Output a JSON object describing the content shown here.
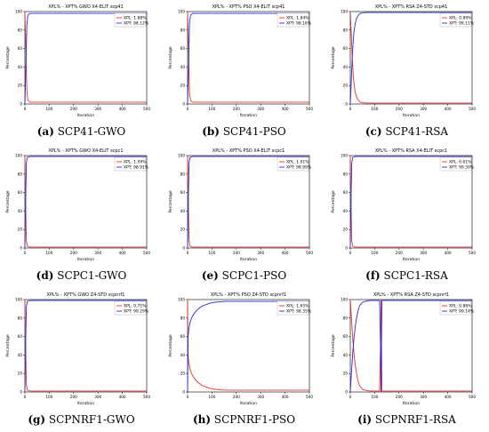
{
  "colors": {
    "xpl": "#e53030",
    "xpt": "#2a2ad8",
    "axis": "#000000",
    "legend_border": "#888888"
  },
  "chart_data": [
    {
      "type": "line",
      "title": "XPL% - XPT% GWO X4-ELIT scp41",
      "xlabel": "Iteration",
      "ylabel": "Percentage",
      "xlim": [
        0,
        500
      ],
      "ylim": [
        0,
        100
      ],
      "xticks": [
        "0",
        "100",
        "200",
        "300",
        "400",
        "500"
      ],
      "yticks": [
        "0",
        "20",
        "40",
        "60",
        "80",
        "100"
      ],
      "legend_position": "top-right",
      "caption_letter": "(a)",
      "caption_text": "SCP41-GWO",
      "series": [
        {
          "name": "XPL",
          "label": "XPL: 1.88%",
          "x": [
            0,
            4,
            8,
            12,
            20,
            50,
            500
          ],
          "y": [
            100,
            60,
            15,
            4,
            2,
            2,
            2
          ]
        },
        {
          "name": "XPT",
          "label": "XPT: 98.12%",
          "x": [
            0,
            4,
            8,
            12,
            20,
            50,
            500
          ],
          "y": [
            0,
            40,
            85,
            96,
            98,
            98,
            98
          ]
        }
      ]
    },
    {
      "type": "line",
      "title": "XPL% - XPT% PSO X4-ELIT scp41",
      "xlabel": "Iteration",
      "ylabel": "Percentage",
      "xlim": [
        0,
        500
      ],
      "ylim": [
        0,
        100
      ],
      "xticks": [
        "0",
        "100",
        "200",
        "300",
        "400",
        "500"
      ],
      "yticks": [
        "0",
        "20",
        "40",
        "60",
        "80",
        "100"
      ],
      "legend_position": "top-right",
      "caption_letter": "(b)",
      "caption_text": "SCP41-PSO",
      "series": [
        {
          "name": "XPL",
          "label": "XPL: 1.84%",
          "x": [
            0,
            4,
            8,
            12,
            20,
            50,
            500
          ],
          "y": [
            100,
            60,
            12,
            4,
            2,
            2,
            2
          ]
        },
        {
          "name": "XPT",
          "label": "XPT: 98.16%",
          "x": [
            0,
            4,
            8,
            12,
            20,
            50,
            500
          ],
          "y": [
            0,
            40,
            88,
            96,
            98,
            98,
            98
          ]
        }
      ]
    },
    {
      "type": "line",
      "title": "XPL% - XPT% RSA Z4-STD scp41",
      "xlabel": "Iteration",
      "ylabel": "Percentage",
      "xlim": [
        0,
        500
      ],
      "ylim": [
        0,
        100
      ],
      "xticks": [
        "0",
        "100",
        "200",
        "300",
        "400",
        "500"
      ],
      "yticks": [
        "0",
        "20",
        "40",
        "60",
        "80",
        "100"
      ],
      "legend_position": "top-right",
      "caption_letter": "(c)",
      "caption_text": "SCP41-RSA",
      "series": [
        {
          "name": "XPL",
          "label": "XPL: 0.89%",
          "x": [
            0,
            3,
            6,
            9,
            12,
            15,
            20,
            25,
            30,
            40,
            60,
            120,
            200,
            500
          ],
          "y": [
            100,
            82,
            62,
            45,
            32,
            22,
            13,
            8,
            5,
            2,
            1,
            1,
            1,
            1
          ]
        },
        {
          "name": "XPT",
          "label": "XPT: 99.11%",
          "x": [
            0,
            3,
            6,
            9,
            12,
            15,
            20,
            25,
            30,
            40,
            60,
            120,
            200,
            500
          ],
          "y": [
            0,
            18,
            38,
            55,
            68,
            78,
            87,
            92,
            95,
            98,
            99,
            99,
            99,
            99
          ]
        }
      ]
    },
    {
      "type": "line",
      "title": "XPL% - XPT% GWO X4-ELIT scpc1",
      "xlabel": "Iteration",
      "ylabel": "Percentage",
      "xlim": [
        0,
        500
      ],
      "ylim": [
        0,
        100
      ],
      "xticks": [
        "0",
        "100",
        "200",
        "300",
        "400",
        "500"
      ],
      "yticks": [
        "0",
        "20",
        "40",
        "60",
        "80",
        "100"
      ],
      "legend_position": "top-right",
      "caption_letter": "(d)",
      "caption_text": "SCPC1-GWO",
      "series": [
        {
          "name": "XPL",
          "label": "XPL: 1.09%",
          "x": [
            0,
            3,
            6,
            10,
            20,
            500
          ],
          "y": [
            100,
            50,
            8,
            2,
            1,
            1
          ]
        },
        {
          "name": "XPT",
          "label": "XPT: 98.91%",
          "x": [
            0,
            3,
            6,
            10,
            20,
            500
          ],
          "y": [
            0,
            50,
            92,
            98,
            99,
            99
          ]
        }
      ]
    },
    {
      "type": "line",
      "title": "XPL% - XPT% PSO X4-ELIT scpc1",
      "xlabel": "Iteration",
      "ylabel": "Percentage",
      "xlim": [
        0,
        500
      ],
      "ylim": [
        0,
        100
      ],
      "xticks": [
        "0",
        "100",
        "200",
        "300",
        "400",
        "500"
      ],
      "yticks": [
        "0",
        "20",
        "40",
        "60",
        "80",
        "100"
      ],
      "legend_position": "top-right",
      "caption_letter": "(e)",
      "caption_text": "SCPC1-PSO",
      "series": [
        {
          "name": "XPL",
          "label": "XPL: 1.01%",
          "x": [
            0,
            3,
            6,
            10,
            20,
            500
          ],
          "y": [
            100,
            50,
            8,
            2,
            1,
            1
          ]
        },
        {
          "name": "XPT",
          "label": "XPT: 98.99%",
          "x": [
            0,
            3,
            6,
            10,
            20,
            500
          ],
          "y": [
            0,
            50,
            92,
            98,
            99,
            99
          ]
        }
      ]
    },
    {
      "type": "line",
      "title": "XPL% - XPT% RSA X4-ELIT scpc1",
      "xlabel": "Iteration",
      "ylabel": "Percentage",
      "xlim": [
        0,
        500
      ],
      "ylim": [
        0,
        100
      ],
      "xticks": [
        "0",
        "100",
        "200",
        "300",
        "400",
        "500"
      ],
      "yticks": [
        "0",
        "20",
        "40",
        "60",
        "80",
        "100"
      ],
      "legend_position": "top-right",
      "caption_letter": "(f)",
      "caption_text": "SCPC1-RSA",
      "series": [
        {
          "name": "XPL",
          "label": "XPL: 0.61%",
          "x": [
            0,
            3,
            6,
            10,
            20,
            500
          ],
          "y": [
            100,
            50,
            8,
            2,
            1,
            1
          ]
        },
        {
          "name": "XPT",
          "label": "XPT: 99.39%",
          "x": [
            0,
            3,
            6,
            10,
            20,
            500
          ],
          "y": [
            0,
            50,
            92,
            98,
            99,
            99
          ]
        }
      ]
    },
    {
      "type": "line",
      "title": "XPL% - XPT% GWO Z4-STD scpnrf1",
      "xlabel": "Iteration",
      "ylabel": "Percentage",
      "xlim": [
        0,
        500
      ],
      "ylim": [
        0,
        100
      ],
      "xticks": [
        "0",
        "100",
        "200",
        "300",
        "400",
        "500"
      ],
      "yticks": [
        "0",
        "20",
        "40",
        "60",
        "80",
        "100"
      ],
      "legend_position": "top-right",
      "caption_letter": "(g)",
      "caption_text": "SCPNRF1-GWO",
      "series": [
        {
          "name": "XPL",
          "label": "XPL: 0.71%",
          "x": [
            0,
            3,
            6,
            10,
            20,
            500
          ],
          "y": [
            100,
            50,
            8,
            2,
            1,
            1
          ]
        },
        {
          "name": "XPT",
          "label": "XPT: 99.29%",
          "x": [
            0,
            3,
            6,
            10,
            20,
            500
          ],
          "y": [
            0,
            50,
            92,
            98,
            99,
            99
          ]
        }
      ]
    },
    {
      "type": "line",
      "title": "XPL% - XPT% PSO Z4-STD scpnrf1",
      "xlabel": "Iteration",
      "ylabel": "Percentage",
      "xlim": [
        0,
        500
      ],
      "ylim": [
        0,
        100
      ],
      "xticks": [
        "0",
        "100",
        "200",
        "300",
        "400",
        "500"
      ],
      "yticks": [
        "0",
        "20",
        "40",
        "60",
        "80",
        "100"
      ],
      "legend_position": "top-right",
      "caption_letter": "(h)",
      "caption_text": "SCPNRF1-PSO",
      "series": [
        {
          "name": "XPL",
          "label": "XPL: 1.65%",
          "x": [
            0,
            2,
            5,
            10,
            15,
            20,
            30,
            40,
            50,
            60,
            70,
            80,
            90,
            100,
            110,
            130,
            150,
            200,
            500
          ],
          "y": [
            100,
            40,
            32,
            25,
            21,
            18,
            14,
            11,
            9,
            7,
            6,
            5,
            4,
            3.5,
            3,
            2.5,
            2,
            2,
            2
          ]
        },
        {
          "name": "XPT",
          "label": "XPT: 98.35%",
          "x": [
            0,
            2,
            5,
            10,
            15,
            20,
            30,
            40,
            50,
            60,
            70,
            80,
            90,
            100,
            110,
            130,
            150,
            200,
            500
          ],
          "y": [
            0,
            60,
            68,
            75,
            79,
            82,
            86,
            89,
            91,
            93,
            94,
            95,
            96,
            96.5,
            97,
            97.5,
            98,
            98,
            98
          ]
        }
      ]
    },
    {
      "type": "line",
      "title": "XPL% - XPT% RSA Z4-STD scpnrf1",
      "xlabel": "Iteration",
      "ylabel": "Percentage",
      "xlim": [
        0,
        500
      ],
      "ylim": [
        0,
        100
      ],
      "xticks": [
        "0",
        "100",
        "200",
        "300",
        "400",
        "500"
      ],
      "yticks": [
        "0",
        "20",
        "40",
        "60",
        "80",
        "100"
      ],
      "legend_position": "top-right",
      "caption_letter": "(i)",
      "caption_text": "SCPNRF1-RSA",
      "series": [
        {
          "name": "XPL",
          "label": "XPL: 0.86%",
          "x": [
            0,
            5,
            10,
            15,
            20,
            25,
            30,
            35,
            40,
            50,
            60,
            80,
            100,
            120,
            124,
            126,
            130,
            500
          ],
          "y": [
            100,
            78,
            58,
            42,
            30,
            21,
            14,
            9,
            6,
            3,
            2,
            1,
            1,
            1,
            50,
            100,
            1,
            1
          ]
        },
        {
          "name": "XPT",
          "label": "XPT: 99.14%",
          "x": [
            0,
            5,
            10,
            15,
            20,
            25,
            30,
            35,
            40,
            50,
            60,
            80,
            100,
            120,
            124,
            126,
            130,
            500
          ],
          "y": [
            0,
            22,
            42,
            58,
            70,
            79,
            86,
            91,
            94,
            97,
            98,
            99,
            99,
            99,
            50,
            0,
            99,
            99
          ]
        }
      ]
    }
  ]
}
